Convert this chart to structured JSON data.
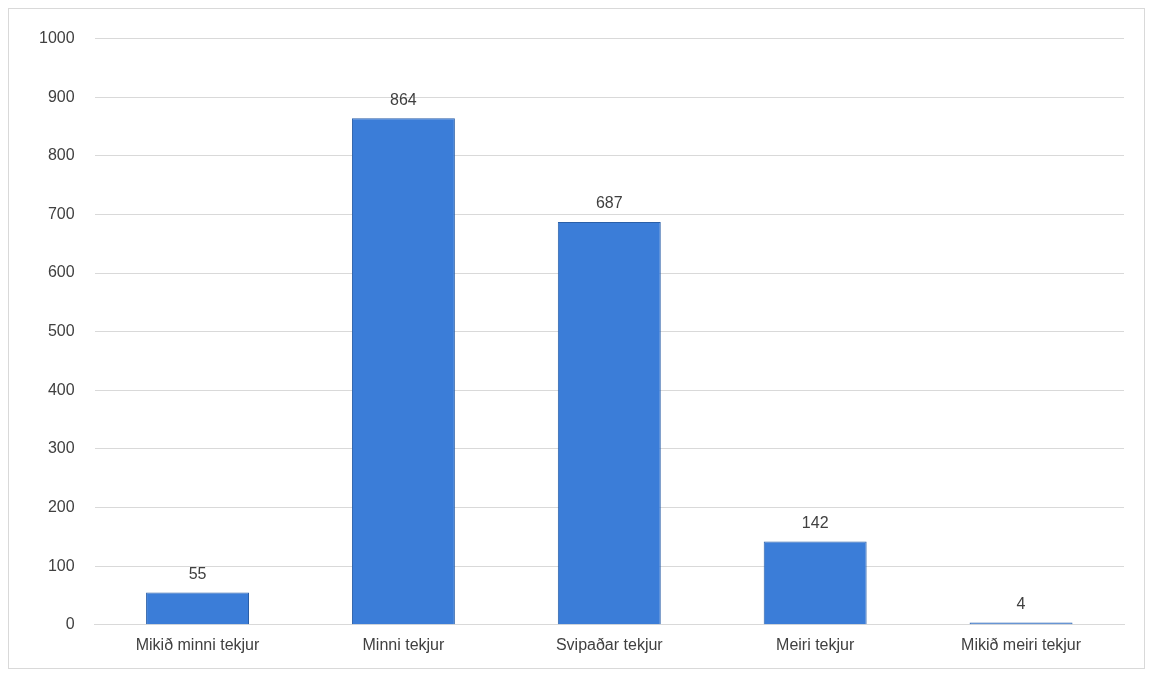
{
  "chart_data": {
    "type": "bar",
    "categories": [
      "Mikið minni tekjur",
      "Minni tekjur",
      "Svipaðar tekjur",
      "Meiri tekjur",
      "Mikið meiri tekjur"
    ],
    "values": [
      55,
      864,
      687,
      142,
      4
    ],
    "color": "#3b7dd8",
    "ylim": [
      0,
      1000
    ],
    "yticks": [
      0,
      100,
      200,
      300,
      400,
      500,
      600,
      700,
      800,
      900,
      1000
    ],
    "grid": "y",
    "data_labels": true,
    "legend": false
  }
}
